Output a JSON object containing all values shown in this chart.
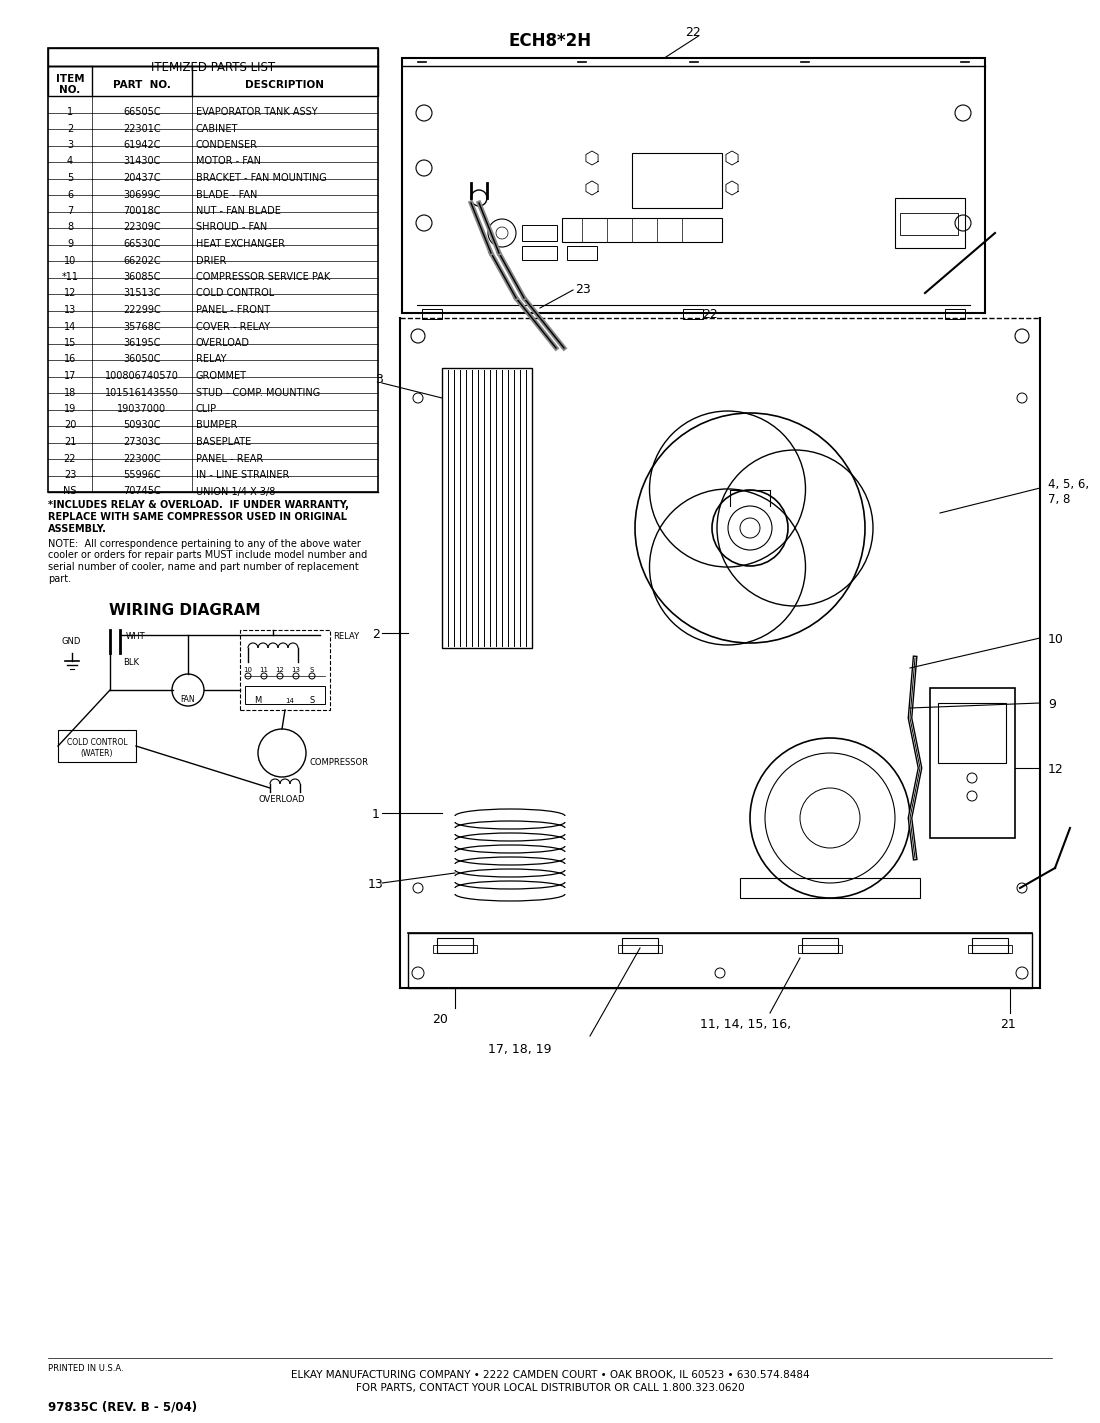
{
  "title": "ECH8*2H",
  "parts_list_title": "ITEMIZED PARTS LIST",
  "parts": [
    [
      "1",
      "66505C",
      "EVAPORATOR TANK ASSY"
    ],
    [
      "2",
      "22301C",
      "CABINET"
    ],
    [
      "3",
      "61942C",
      "CONDENSER"
    ],
    [
      "4",
      "31430C",
      "MOTOR - FAN"
    ],
    [
      "5",
      "20437C",
      "BRACKET - FAN MOUNTING"
    ],
    [
      "6",
      "30699C",
      "BLADE - FAN"
    ],
    [
      "7",
      "70018C",
      "NUT - FAN BLADE"
    ],
    [
      "8",
      "22309C",
      "SHROUD - FAN"
    ],
    [
      "9",
      "66530C",
      "HEAT EXCHANGER"
    ],
    [
      "10",
      "66202C",
      "DRIER"
    ],
    [
      "*11",
      "36085C",
      "COMPRESSOR SERVICE PAK"
    ],
    [
      "12",
      "31513C",
      "COLD CONTROL"
    ],
    [
      "13",
      "22299C",
      "PANEL - FRONT"
    ],
    [
      "14",
      "35768C",
      "COVER - RELAY"
    ],
    [
      "15",
      "36195C",
      "OVERLOAD"
    ],
    [
      "16",
      "36050C",
      "RELAY"
    ],
    [
      "17",
      "100806740570",
      "GROMMET"
    ],
    [
      "18",
      "101516143550",
      "STUD - COMP. MOUNTING"
    ],
    [
      "19",
      "19037000",
      "CLIP"
    ],
    [
      "20",
      "50930C",
      "BUMPER"
    ],
    [
      "21",
      "27303C",
      "BASEPLATE"
    ],
    [
      "22",
      "22300C",
      "PANEL - REAR"
    ],
    [
      "23",
      "55996C",
      "IN - LINE STRAINER"
    ],
    [
      "NS",
      "70745C",
      "UNION 1/4 X 3/8"
    ]
  ],
  "footnote_bold_lines": [
    "*INCLUDES RELAY & OVERLOAD.  IF UNDER WARRANTY,",
    "REPLACE WITH SAME COMPRESSOR USED IN ORIGINAL",
    "ASSEMBLY."
  ],
  "footnote_normal_lines": [
    "NOTE:  All correspondence pertaining to any of the above water",
    "cooler or orders for repair parts MUST include model number and",
    "serial number of cooler, name and part number of replacement",
    "part."
  ],
  "wiring_title": "WIRING DIAGRAM",
  "footer_line1": "ELKAY MANUFACTURING COMPANY • 2222 CAMDEN COURT • OAK BROOK, IL 60523 • 630.574.8484",
  "footer_line2": "FOR PARTS, CONTACT YOUR LOCAL DISTRIBUTOR OR CALL 1.800.323.0620",
  "footer_partnum": "97835C (REV. B - 5/04)",
  "footer_printed": "PRINTED IN U.S.A.",
  "bg_color": "#ffffff"
}
